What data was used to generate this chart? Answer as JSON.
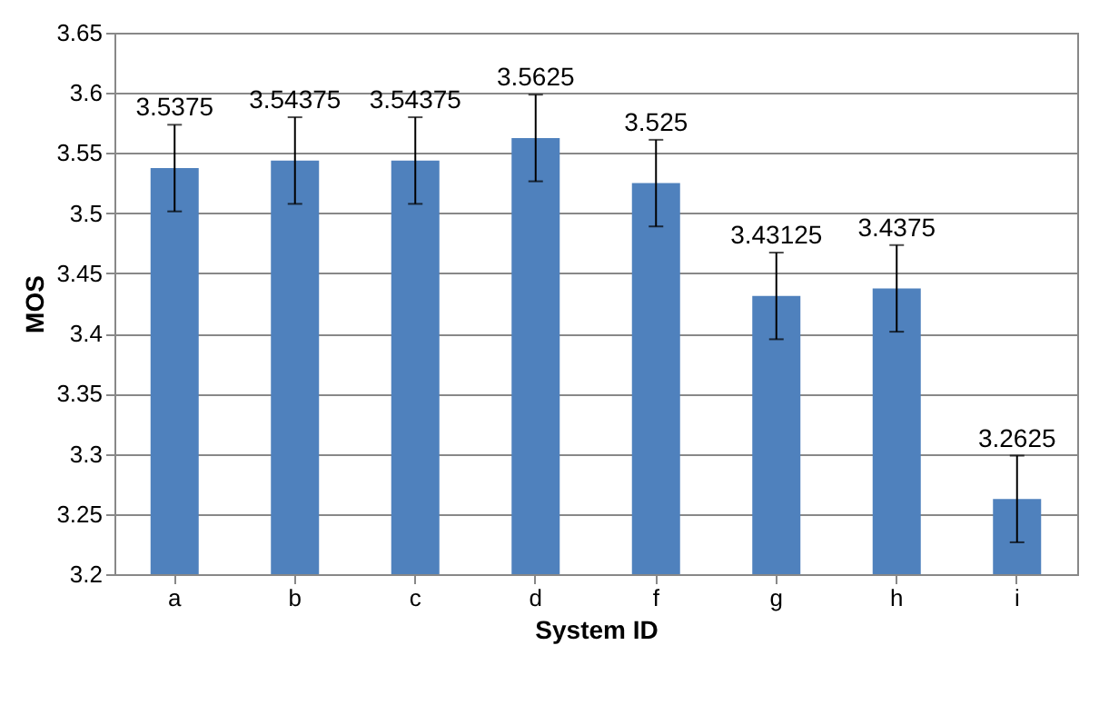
{
  "chart_data": {
    "type": "bar",
    "categories": [
      "a",
      "b",
      "c",
      "d",
      "f",
      "g",
      "h",
      "i"
    ],
    "values": [
      3.5375,
      3.54375,
      3.54375,
      3.5625,
      3.525,
      3.43125,
      3.4375,
      3.2625
    ],
    "errors": [
      0.036,
      0.036,
      0.036,
      0.036,
      0.036,
      0.036,
      0.036,
      0.036
    ],
    "color": "#4f81bd",
    "xlabel": "System ID",
    "ylabel": "MOS",
    "ylim": [
      3.2,
      3.65
    ],
    "yticks": [
      3.2,
      3.25,
      3.3,
      3.35,
      3.4,
      3.45,
      3.5,
      3.55,
      3.6,
      3.65
    ],
    "grid": "y",
    "data_labels": true
  }
}
